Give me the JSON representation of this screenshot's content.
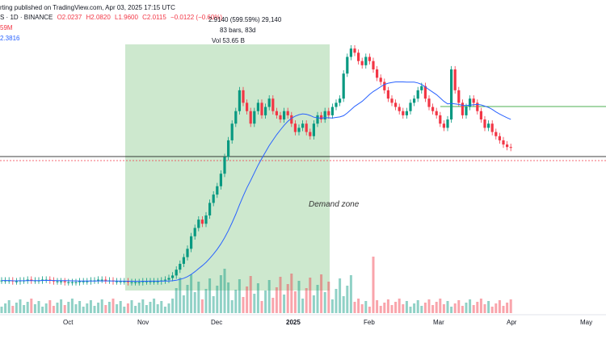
{
  "header": {
    "published": "rting published on TradingView.com, Apr 03, 2025 17:15 UTC",
    "symbol_line": "S · 1D · BINANCE",
    "open": "O2.0237",
    "high": "H2.0820",
    "low": "L1.9600",
    "close": "C2.0115",
    "change": "−0.0122 (−0.60%)",
    "volume_partial": "59M",
    "ma_value": "2.3816"
  },
  "measure": {
    "line1": "2.9140 (599.59%) 29,140",
    "line2": "83 bars, 83d",
    "line3": "Vol 53.65 B"
  },
  "annotation": {
    "demand_zone": "Demand zone"
  },
  "x_axis": {
    "labels": [
      "Oct",
      "Nov",
      "Dec",
      "2025",
      "Feb",
      "Mar",
      "Apr",
      "May"
    ]
  },
  "colors": {
    "up": "#089981",
    "down": "#f23645",
    "zone": "#c8e6c9",
    "ma": "#2962ff",
    "resistance": "#4caf50",
    "support": "#000000",
    "price_line": "#f23645"
  },
  "chart_data": {
    "type": "line",
    "title": "",
    "xlabel": "",
    "ylabel": "",
    "series": [
      {
        "name": "",
        "values": [
          0.42,
          0.42,
          0.42,
          0.41,
          0.41,
          0.42,
          0.42,
          0.43,
          0.42,
          0.42,
          0.42,
          0.43,
          0.43,
          0.42,
          0.41,
          0.41,
          0.41,
          0.4,
          0.4,
          0.4,
          0.4,
          0.41,
          0.41,
          0.41,
          0.42,
          0.42,
          0.43,
          0.43,
          0.42,
          0.42,
          0.41,
          0.41,
          0.41,
          0.41,
          0.4,
          0.4,
          0.4,
          0.4,
          0.41,
          0.41,
          0.41,
          0.41,
          0.41,
          0.42,
          0.43,
          0.45,
          0.48,
          0.55,
          0.62,
          0.7,
          0.8,
          0.95,
          1.05,
          1.15,
          1.1,
          1.2,
          1.35,
          1.45,
          1.55,
          1.7,
          1.9,
          2.1,
          2.3,
          2.45,
          2.7,
          2.55,
          2.45,
          2.3,
          2.45,
          2.55,
          2.4,
          2.5,
          2.6,
          2.45,
          2.4,
          2.35,
          2.45,
          2.4,
          2.3,
          2.2,
          2.25,
          2.3,
          2.2,
          2.15,
          2.3,
          2.4,
          2.35,
          2.45,
          2.4,
          2.5,
          2.55,
          2.6,
          2.9,
          3.1,
          3.2,
          3.15,
          3.05,
          3.0,
          3.1,
          3.05,
          2.95,
          2.85,
          2.8,
          2.7,
          2.6,
          2.55,
          2.5,
          2.45,
          2.4,
          2.45,
          2.55,
          2.6,
          2.7,
          2.75,
          2.6,
          2.5,
          2.45,
          2.4,
          2.3,
          2.25,
          2.35,
          2.95,
          2.7,
          2.55,
          2.4,
          2.5,
          2.6,
          2.55,
          2.45,
          2.35,
          2.25,
          2.3,
          2.2,
          2.15,
          2.1,
          2.05,
          2.02,
          2.01
        ]
      }
    ]
  }
}
